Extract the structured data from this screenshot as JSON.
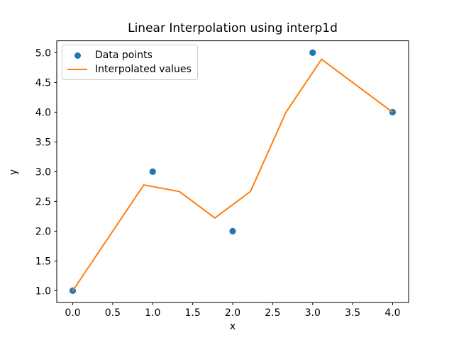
{
  "chart_data": {
    "type": "line",
    "title": "Linear Interpolation using interp1d",
    "xlabel": "x",
    "ylabel": "y",
    "xlim": [
      -0.2,
      4.2
    ],
    "ylim": [
      0.8,
      5.2
    ],
    "grid": false,
    "x_ticks": [
      0.0,
      0.5,
      1.0,
      1.5,
      2.0,
      2.5,
      3.0,
      3.5,
      4.0
    ],
    "x_tick_labels": [
      "0.0",
      "0.5",
      "1.0",
      "1.5",
      "2.0",
      "2.5",
      "3.0",
      "3.5",
      "4.0"
    ],
    "y_ticks": [
      1.0,
      1.5,
      2.0,
      2.5,
      3.0,
      3.5,
      4.0,
      4.5,
      5.0
    ],
    "y_tick_labels": [
      "1.0",
      "1.5",
      "2.0",
      "2.5",
      "3.0",
      "3.5",
      "4.0",
      "4.5",
      "5.0"
    ],
    "series": [
      {
        "name": "Data points",
        "type": "scatter",
        "color": "#1f77b4",
        "x": [
          0,
          1,
          2,
          3,
          4
        ],
        "y": [
          1,
          3,
          2,
          5,
          4
        ]
      },
      {
        "name": "Interpolated values",
        "type": "line",
        "color": "#ff7f0e",
        "x": [
          0.0,
          0.4444,
          0.8889,
          1.3333,
          1.7778,
          2.2222,
          2.6667,
          3.1111,
          3.5556,
          4.0
        ],
        "y": [
          1.0,
          1.8889,
          2.7778,
          2.6667,
          2.2222,
          2.6667,
          4.0,
          4.8889,
          4.4444,
          4.0
        ]
      }
    ],
    "legend": {
      "position": "upper-left",
      "entries": [
        {
          "label": "Data points",
          "marker": "dot",
          "color": "#1f77b4"
        },
        {
          "label": "Interpolated values",
          "marker": "line",
          "color": "#ff7f0e"
        }
      ]
    }
  }
}
